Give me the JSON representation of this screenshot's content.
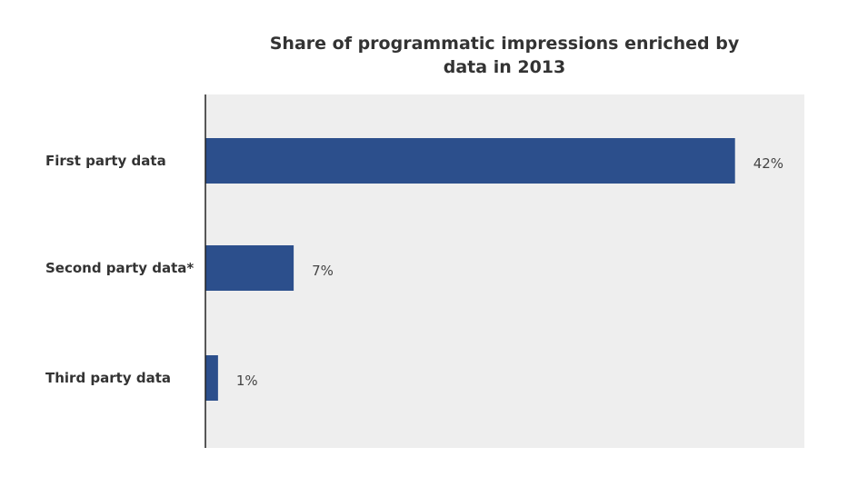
{
  "chart_data": {
    "type": "bar",
    "orientation": "horizontal",
    "title_lines": [
      "Share of programmatic impressions enriched by",
      "data in 2013"
    ],
    "categories": [
      "First party data",
      "Second party data*",
      "Third party data"
    ],
    "values": [
      42,
      7,
      1
    ],
    "value_labels": [
      "42%",
      "7%",
      "1%"
    ],
    "xlim": [
      0,
      47.5
    ],
    "grid": false,
    "legend": "none",
    "colors": {
      "bar": "#2c4f8c",
      "plot_bg": "#eeeeee",
      "axis": "#222222"
    }
  }
}
